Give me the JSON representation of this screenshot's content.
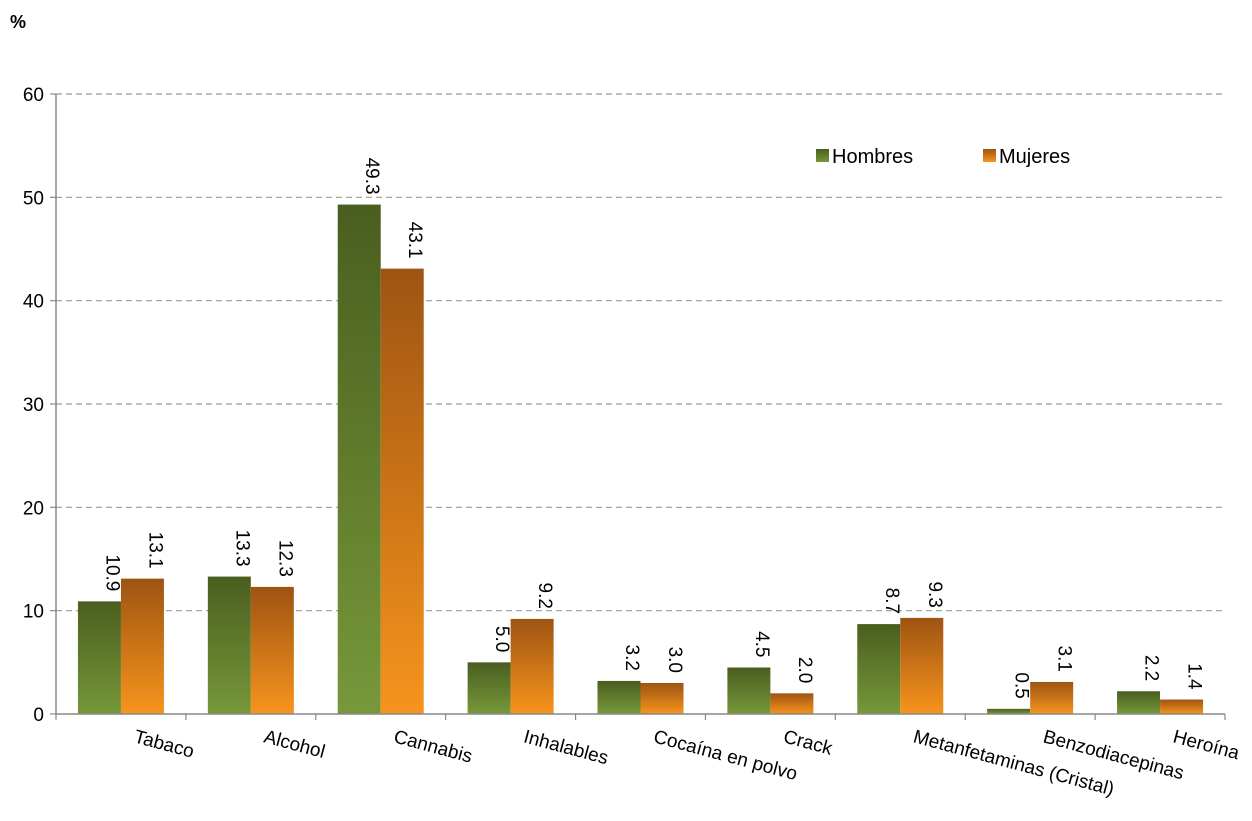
{
  "colors": {
    "hombres_top": "#4a5e1f",
    "hombres_bottom": "#76983a",
    "mujeres_top": "#9e5412",
    "mujeres_bottom": "#f7941d",
    "grid": "#999999",
    "axis": "#888888"
  },
  "chart_data": {
    "type": "bar",
    "ylabel": "%",
    "ylim": [
      0,
      60
    ],
    "yticks": [
      0,
      10,
      20,
      30,
      40,
      50,
      60
    ],
    "grid": true,
    "legend_position": "top-right",
    "categories": [
      "Tabaco",
      "Alcohol",
      "Cannabis",
      "Inhalables",
      "Cocaína en polvo",
      "Crack",
      "Metanfetaminas (Cristal)",
      "Benzodiacepinas",
      "Heroína"
    ],
    "series": [
      {
        "name": "Hombres",
        "values": [
          10.9,
          13.3,
          49.3,
          5.0,
          3.2,
          4.5,
          8.7,
          0.5,
          2.2
        ],
        "labels": [
          "10.9",
          "13.3",
          "49.3",
          "5.0",
          "3.2",
          "4.5",
          "8.7",
          "0.5",
          "2.2"
        ]
      },
      {
        "name": "Mujeres",
        "values": [
          13.1,
          12.3,
          43.1,
          9.2,
          3.0,
          2.0,
          9.3,
          3.1,
          1.4
        ],
        "labels": [
          "13.1",
          "12.3",
          "43.1",
          "9.2",
          "3.0",
          "2.0",
          "9.3",
          "3.1",
          "1.4"
        ]
      }
    ]
  }
}
